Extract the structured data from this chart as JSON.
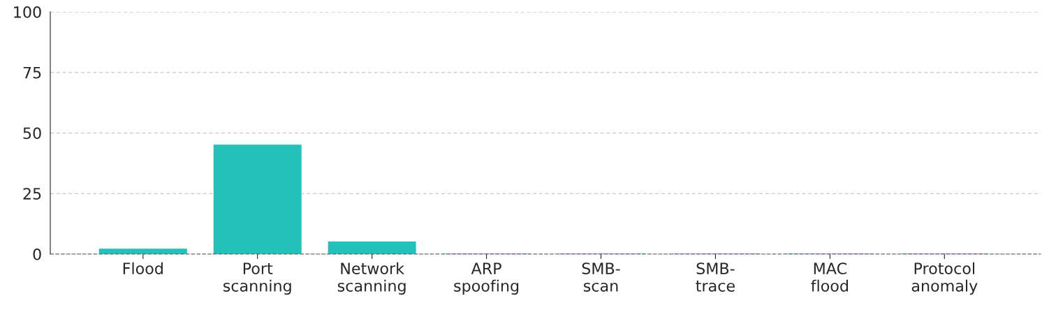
{
  "chart_data": {
    "type": "bar",
    "categories": [
      "Flood",
      "Port\nscanning",
      "Network\nscanning",
      "ARP\nspoofing",
      "SMB-\nscan",
      "SMB-\ntrace",
      "MAC\nflood",
      "Protocol\nanomaly"
    ],
    "values": [
      2,
      45,
      5,
      0,
      0,
      0,
      0,
      0
    ],
    "color": "#24c1ba",
    "ylim": [
      0,
      100
    ],
    "yticks": [
      0,
      25,
      50,
      75,
      100
    ],
    "grid": "y",
    "legend": false
  }
}
